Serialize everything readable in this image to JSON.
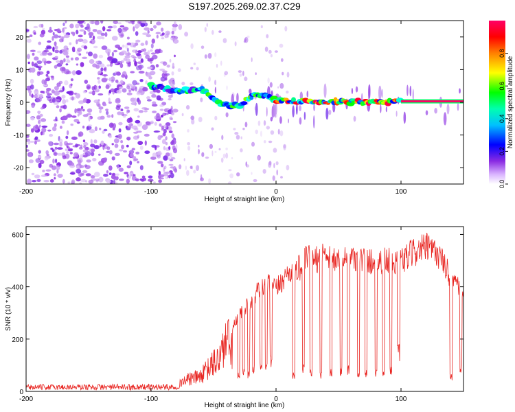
{
  "figure": {
    "title": "S197.2025.269.02.37.C29"
  },
  "chart_data": [
    {
      "type": "heatmap",
      "title": "S197.2025.269.02.37.C29",
      "xlabel": "Height of straight line (km)",
      "ylabel": "Frequency (Hz)",
      "xlim": [
        -200,
        150
      ],
      "ylim": [
        -25,
        25
      ],
      "xticks": [
        -200,
        -100,
        0,
        100
      ],
      "xtick_labels": [
        "-200",
        "-100",
        "0",
        "100"
      ],
      "yticks": [
        -20,
        -10,
        0,
        10,
        20
      ],
      "ytick_labels": [
        "-20",
        "-10",
        "0",
        "10",
        "20"
      ],
      "colorbar": {
        "label": "Normalized spectral amplitude",
        "range": [
          0,
          1
        ],
        "ticks": [
          0,
          0.2,
          0.4,
          0.6,
          0.8
        ],
        "tick_labels": [
          "0.0",
          "0.2",
          "0.4",
          "0.6",
          "0.8"
        ],
        "colormap": [
          "#ffffff",
          "#8a2be2",
          "#0000ff",
          "#00ffff",
          "#00ff00",
          "#ffff00",
          "#ff8000",
          "#ff0000",
          "#ff0066"
        ]
      },
      "description_points": {
        "noise_region_x": [
          -200,
          -90
        ],
        "trend_x": [
          -100,
          -80,
          -60,
          -50,
          -40,
          -30,
          -20,
          -10,
          0,
          20,
          40,
          60,
          80,
          100,
          150
        ],
        "trend_freq": [
          5,
          3.5,
          4,
          1,
          -1,
          -1,
          2,
          2,
          0.5,
          0.3,
          0.2,
          0.2,
          0.1,
          0.1,
          0.1
        ],
        "strong_line": {
          "x": [
            100,
            150
          ],
          "freq": 0.3,
          "amplitude": 1.0
        }
      }
    },
    {
      "type": "line",
      "title": "",
      "xlabel": "Height of straight line (km)",
      "ylabel": "SNR (10 * v/v)",
      "xlim": [
        -200,
        150
      ],
      "ylim": [
        0,
        630
      ],
      "xticks": [
        -200,
        -100,
        0,
        100
      ],
      "xtick_labels": [
        "-200",
        "-100",
        "0",
        "100"
      ],
      "yticks": [
        0,
        200,
        400,
        600
      ],
      "ytick_labels": [
        "0",
        "200",
        "400",
        "600"
      ],
      "series": [
        {
          "name": "SNR",
          "color": "#e8231f",
          "envelope_x": [
            -200,
            -80,
            -75,
            -60,
            -45,
            -40,
            -35,
            -25,
            -15,
            -5,
            0,
            10,
            20,
            25,
            30,
            40,
            50,
            60,
            70,
            80,
            90,
            100,
            110,
            120,
            130,
            140,
            150
          ],
          "envelope_y": [
            18,
            20,
            60,
            90,
            200,
            300,
            250,
            340,
            400,
            430,
            410,
            480,
            500,
            540,
            520,
            560,
            520,
            540,
            530,
            520,
            530,
            520,
            560,
            580,
            550,
            460,
            380
          ],
          "dip_x": [
            -30,
            -26,
            -22,
            -18,
            -12,
            -8,
            -4,
            14,
            22,
            28,
            36,
            44,
            52,
            58,
            66,
            72,
            80,
            86,
            92,
            98,
            140,
            148
          ],
          "dip_y": [
            60,
            80,
            70,
            90,
            110,
            100,
            120,
            60,
            90,
            80,
            70,
            75,
            80,
            90,
            75,
            70,
            80,
            75,
            80,
            150,
            60,
            90
          ]
        }
      ]
    }
  ]
}
